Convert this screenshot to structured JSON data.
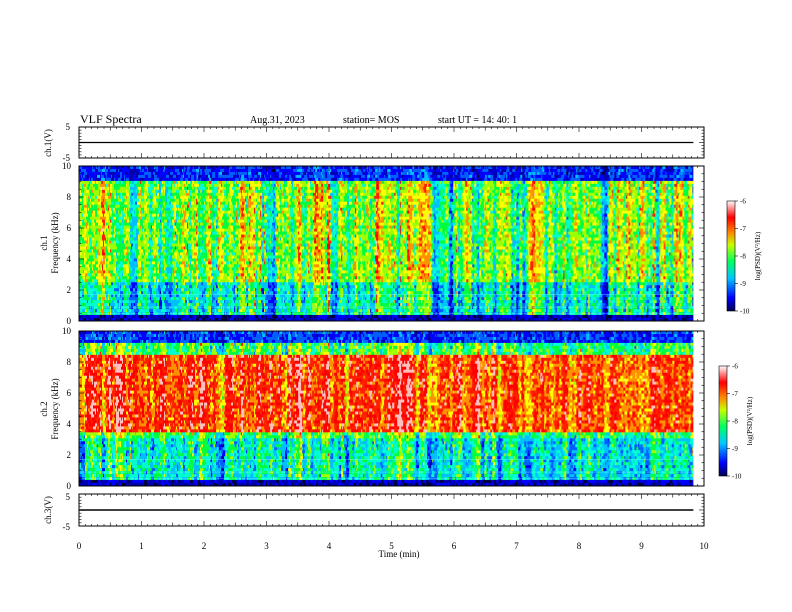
{
  "header": {
    "title": "VLF Spectra",
    "date": "Aug.31, 2023",
    "station": "station= MOS",
    "start": "start  UT =   14: 40: 1"
  },
  "chart_data": [
    {
      "type": "line",
      "name": "ch1-voltage",
      "ylabel": "ch.1(V)",
      "ylim": [
        -5,
        5
      ],
      "yticks": [
        "5",
        "-5"
      ],
      "x": [
        0,
        9.83
      ],
      "y": [
        0,
        0
      ]
    },
    {
      "type": "heatmap",
      "name": "ch1-spectrogram",
      "ylabel_line1": "ch.1",
      "ylabel_line2": "Frequency (kHz)",
      "ylim": [
        0,
        10
      ],
      "yticks": [
        "0",
        "2",
        "4",
        "6",
        "8",
        "10"
      ],
      "xlim": [
        0,
        10
      ],
      "data_extent_min": 9.83,
      "colorbar": {
        "label": "log(PSD)(V²/Hz)",
        "range": [
          -10,
          -6
        ],
        "ticks": [
          "-6",
          "-7",
          "-8",
          "-9",
          "-10"
        ]
      }
    },
    {
      "type": "heatmap",
      "name": "ch2-spectrogram",
      "ylabel_line1": "ch.2",
      "ylabel_line2": "Frequency (kHz)",
      "ylim": [
        0,
        10
      ],
      "yticks": [
        "0",
        "2",
        "4",
        "6",
        "8",
        "10"
      ],
      "xlim": [
        0,
        10
      ],
      "data_extent_min": 9.83,
      "colorbar": {
        "label": "log(PSD)(V²/Hz)",
        "range": [
          -10,
          -6
        ],
        "ticks": [
          "-6",
          "-7",
          "-8",
          "-9",
          "-10"
        ]
      }
    },
    {
      "type": "line",
      "name": "ch3-voltage",
      "ylabel": "ch.3(V)",
      "ylim": [
        -5,
        5
      ],
      "yticks": [
        "5",
        "-5"
      ],
      "x": [
        0,
        9.83
      ],
      "y": [
        0,
        0
      ]
    }
  ],
  "xaxis": {
    "label": "Time  (min)",
    "ticks": [
      "0",
      "1",
      "2",
      "3",
      "4",
      "5",
      "6",
      "7",
      "8",
      "9",
      "10"
    ],
    "range": [
      0,
      10
    ]
  }
}
